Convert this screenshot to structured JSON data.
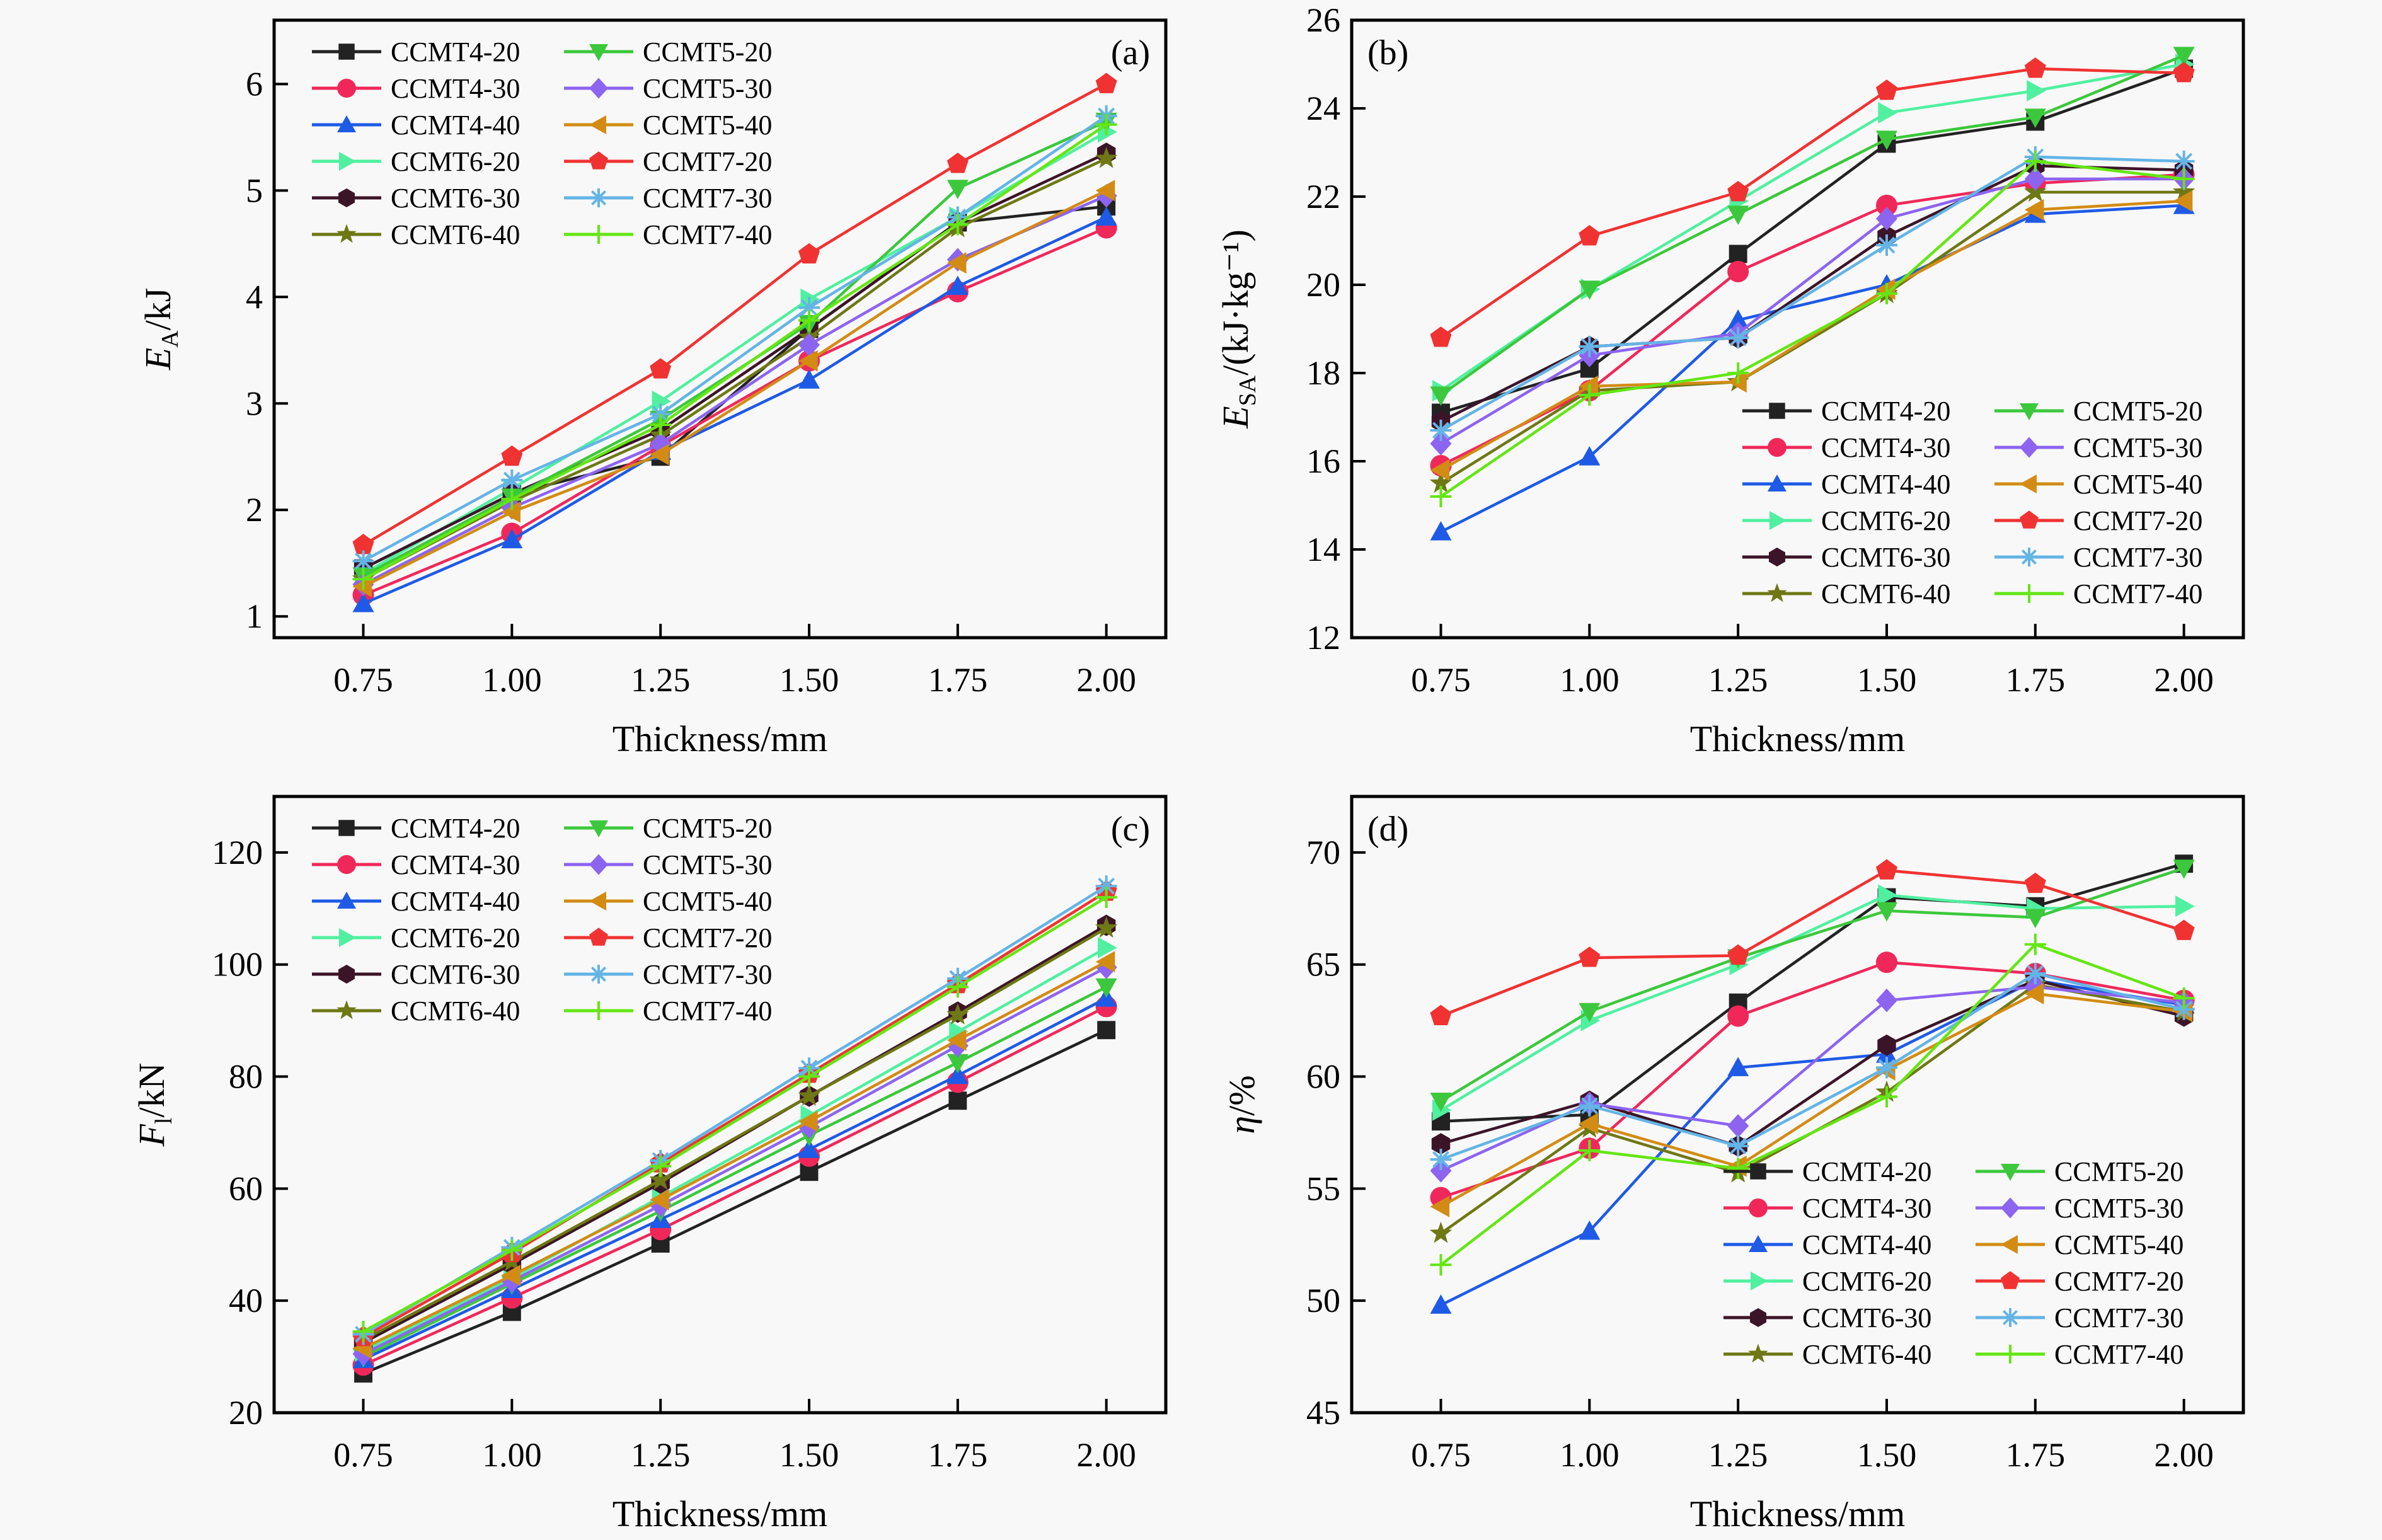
{
  "series_styles": [
    {
      "name": "CCMT4-20",
      "color": "#222222",
      "marker": "square"
    },
    {
      "name": "CCMT4-30",
      "color": "#f0285a",
      "marker": "circle"
    },
    {
      "name": "CCMT4-40",
      "color": "#1e5ae6",
      "marker": "triangle-up"
    },
    {
      "name": "CCMT6-20",
      "color": "#50f0a0",
      "marker": "triangle-right"
    },
    {
      "name": "CCMT6-30",
      "color": "#3c1428",
      "marker": "hexagon"
    },
    {
      "name": "CCMT6-40",
      "color": "#6e7814",
      "marker": "star"
    },
    {
      "name": "CCMT5-20",
      "color": "#3cc83c",
      "marker": "triangle-down"
    },
    {
      "name": "CCMT5-30",
      "color": "#8c64f0",
      "marker": "diamond"
    },
    {
      "name": "CCMT5-40",
      "color": "#d28c14",
      "marker": "triangle-left"
    },
    {
      "name": "CCMT7-20",
      "color": "#f03232",
      "marker": "pentagon"
    },
    {
      "name": "CCMT7-30",
      "color": "#64b4e6",
      "marker": "asterisk"
    },
    {
      "name": "CCMT7-40",
      "color": "#64e614",
      "marker": "plus"
    }
  ],
  "chart_data": [
    {
      "id": "a",
      "type": "line",
      "panel_label": "(a)",
      "title": "",
      "xlabel": "Thickness/mm",
      "ylabel_main": "E",
      "ylabel_sub": "A",
      "ylabel_suffix": "/kJ",
      "x": [
        0.75,
        1.0,
        1.25,
        1.5,
        1.75,
        2.0
      ],
      "x_tick_labels": [
        "0.75",
        "1.00",
        "1.25",
        "1.50",
        "1.75",
        "2.00"
      ],
      "xlim": [
        0.6,
        2.1
      ],
      "ylim": [
        0.8,
        6.6
      ],
      "y_ticks": [
        1,
        2,
        3,
        4,
        5,
        6
      ],
      "y_tick_labels": [
        "1",
        "2",
        "3",
        "4",
        "5",
        "6"
      ],
      "legend_position": "top-left",
      "legend_columns": 2,
      "grid": false,
      "series": [
        {
          "name": "CCMT4-20",
          "values": [
            1.45,
            2.15,
            2.5,
            3.7,
            4.7,
            4.85
          ]
        },
        {
          "name": "CCMT4-30",
          "values": [
            1.2,
            1.78,
            2.6,
            3.4,
            4.05,
            4.65
          ]
        },
        {
          "name": "CCMT4-40",
          "values": [
            1.12,
            1.72,
            2.55,
            3.22,
            4.1,
            4.75
          ]
        },
        {
          "name": "CCMT6-20",
          "values": [
            1.4,
            2.2,
            3.02,
            3.98,
            4.75,
            5.55
          ]
        },
        {
          "name": "CCMT6-30",
          "values": [
            1.45,
            2.15,
            2.75,
            3.7,
            4.7,
            5.35
          ]
        },
        {
          "name": "CCMT6-40",
          "values": [
            1.35,
            2.08,
            2.7,
            3.62,
            4.65,
            5.3
          ]
        },
        {
          "name": "CCMT5-20",
          "values": [
            1.38,
            2.12,
            2.85,
            3.75,
            5.02,
            5.65
          ]
        },
        {
          "name": "CCMT5-30",
          "values": [
            1.3,
            2.02,
            2.62,
            3.55,
            4.35,
            4.95
          ]
        },
        {
          "name": "CCMT5-40",
          "values": [
            1.28,
            1.98,
            2.52,
            3.4,
            4.32,
            5.0
          ]
        },
        {
          "name": "CCMT7-20",
          "values": [
            1.67,
            2.5,
            3.32,
            4.4,
            5.25,
            6.0
          ]
        },
        {
          "name": "CCMT7-30",
          "values": [
            1.52,
            2.28,
            2.9,
            3.9,
            4.75,
            5.7
          ]
        },
        {
          "name": "CCMT7-40",
          "values": [
            1.35,
            2.1,
            2.8,
            3.78,
            4.68,
            5.62
          ]
        }
      ]
    },
    {
      "id": "b",
      "type": "line",
      "panel_label": "(b)",
      "title": "",
      "xlabel": "Thickness/mm",
      "ylabel_main": "E",
      "ylabel_sub": "SA",
      "ylabel_suffix": "/(kJ·kg⁻¹)",
      "x": [
        0.75,
        1.0,
        1.25,
        1.5,
        1.75,
        2.0
      ],
      "x_tick_labels": [
        "0.75",
        "1.00",
        "1.25",
        "1.50",
        "1.75",
        "2.00"
      ],
      "xlim": [
        0.6,
        2.1
      ],
      "ylim": [
        12,
        26
      ],
      "y_ticks": [
        12,
        14,
        16,
        18,
        20,
        22,
        24,
        26
      ],
      "y_tick_labels": [
        "12",
        "14",
        "16",
        "18",
        "20",
        "22",
        "24",
        "26"
      ],
      "legend_position": "bottom-right",
      "legend_columns": 2,
      "grid": false,
      "series": [
        {
          "name": "CCMT4-20",
          "values": [
            17.1,
            18.1,
            20.7,
            23.2,
            23.7,
            24.9
          ]
        },
        {
          "name": "CCMT4-30",
          "values": [
            15.9,
            17.6,
            20.3,
            21.8,
            22.3,
            22.5
          ]
        },
        {
          "name": "CCMT4-40",
          "values": [
            14.4,
            16.1,
            19.2,
            20.0,
            21.6,
            21.8
          ]
        },
        {
          "name": "CCMT6-20",
          "values": [
            17.6,
            19.9,
            21.9,
            23.9,
            24.4,
            25.0
          ]
        },
        {
          "name": "CCMT6-30",
          "values": [
            16.9,
            18.6,
            18.8,
            21.1,
            22.7,
            22.6
          ]
        },
        {
          "name": "CCMT6-40",
          "values": [
            15.5,
            17.6,
            17.8,
            19.8,
            22.1,
            22.1
          ]
        },
        {
          "name": "CCMT5-20",
          "values": [
            17.5,
            19.9,
            21.6,
            23.3,
            23.8,
            25.2
          ]
        },
        {
          "name": "CCMT5-30",
          "values": [
            16.4,
            18.4,
            18.9,
            21.5,
            22.4,
            22.4
          ]
        },
        {
          "name": "CCMT5-40",
          "values": [
            15.8,
            17.7,
            17.8,
            19.9,
            21.7,
            21.9
          ]
        },
        {
          "name": "CCMT7-20",
          "values": [
            18.8,
            21.1,
            22.1,
            24.4,
            24.9,
            24.8
          ]
        },
        {
          "name": "CCMT7-30",
          "values": [
            16.7,
            18.6,
            18.8,
            20.9,
            22.9,
            22.8
          ]
        },
        {
          "name": "CCMT7-40",
          "values": [
            15.2,
            17.5,
            18.0,
            19.8,
            22.8,
            22.4
          ]
        }
      ]
    },
    {
      "id": "c",
      "type": "line",
      "panel_label": "(c)",
      "title": "",
      "xlabel": "Thickness/mm",
      "ylabel_main": "F",
      "ylabel_sub": "l",
      "ylabel_suffix": "/kN",
      "x": [
        0.75,
        1.0,
        1.25,
        1.5,
        1.75,
        2.0
      ],
      "x_tick_labels": [
        "0.75",
        "1.00",
        "1.25",
        "1.50",
        "1.75",
        "2.00"
      ],
      "xlim": [
        0.6,
        2.1
      ],
      "ylim": [
        20,
        130
      ],
      "y_ticks": [
        20,
        40,
        60,
        80,
        100,
        120
      ],
      "y_tick_labels": [
        "20",
        "40",
        "60",
        "80",
        "100",
        "120"
      ],
      "legend_position": "top-left",
      "legend_columns": 2,
      "grid": false,
      "series": [
        {
          "name": "CCMT4-20",
          "values": [
            27.0,
            38.0,
            50.2,
            63.0,
            75.7,
            88.3
          ]
        },
        {
          "name": "CCMT4-30",
          "values": [
            28.5,
            40.5,
            52.7,
            65.8,
            79.0,
            92.5
          ]
        },
        {
          "name": "CCMT4-40",
          "values": [
            29.5,
            42.0,
            54.5,
            67.0,
            80.2,
            94.0
          ]
        },
        {
          "name": "CCMT6-20",
          "values": [
            31.0,
            44.0,
            58.5,
            73.0,
            88.0,
            103.0
          ]
        },
        {
          "name": "CCMT6-30",
          "values": [
            32.5,
            46.5,
            61.0,
            76.5,
            91.5,
            107.0
          ]
        },
        {
          "name": "CCMT6-40",
          "values": [
            33.0,
            47.0,
            61.5,
            76.5,
            91.0,
            106.5
          ]
        },
        {
          "name": "CCMT5-20",
          "values": [
            30.0,
            43.0,
            56.0,
            69.5,
            82.5,
            96.0
          ]
        },
        {
          "name": "CCMT5-30",
          "values": [
            30.5,
            43.5,
            57.0,
            71.0,
            85.5,
            99.5
          ]
        },
        {
          "name": "CCMT5-40",
          "values": [
            31.5,
            44.5,
            58.0,
            72.0,
            86.5,
            100.5
          ]
        },
        {
          "name": "CCMT7-20",
          "values": [
            33.5,
            48.5,
            64.5,
            80.5,
            96.5,
            113.0
          ]
        },
        {
          "name": "CCMT7-30",
          "values": [
            34.0,
            49.5,
            65.0,
            81.5,
            97.5,
            114.0
          ]
        },
        {
          "name": "CCMT7-40",
          "values": [
            34.5,
            49.0,
            64.0,
            80.0,
            96.0,
            112.0
          ]
        }
      ]
    },
    {
      "id": "d",
      "type": "line",
      "panel_label": "(d)",
      "title": "",
      "xlabel": "Thickness/mm",
      "ylabel_main": "η",
      "ylabel_sub": "",
      "ylabel_suffix": "/%",
      "x": [
        0.75,
        1.0,
        1.25,
        1.5,
        1.75,
        2.0
      ],
      "x_tick_labels": [
        "0.75",
        "1.00",
        "1.25",
        "1.50",
        "1.75",
        "2.00"
      ],
      "xlim": [
        0.6,
        2.1
      ],
      "ylim": [
        45,
        72.5
      ],
      "y_ticks": [
        45,
        50,
        55,
        60,
        65,
        70
      ],
      "y_tick_labels": [
        "45",
        "50",
        "55",
        "60",
        "65",
        "70"
      ],
      "legend_position": "bottom-right",
      "legend_columns": 2,
      "grid": false,
      "series": [
        {
          "name": "CCMT4-20",
          "values": [
            58.0,
            58.3,
            63.3,
            68.0,
            67.6,
            69.5
          ]
        },
        {
          "name": "CCMT4-30",
          "values": [
            54.6,
            56.8,
            62.7,
            65.1,
            64.6,
            63.4
          ]
        },
        {
          "name": "CCMT4-40",
          "values": [
            49.8,
            53.1,
            60.4,
            61.0,
            64.3,
            63.2
          ]
        },
        {
          "name": "CCMT6-20",
          "values": [
            58.5,
            62.5,
            65.0,
            68.1,
            67.5,
            67.6
          ]
        },
        {
          "name": "CCMT6-30",
          "values": [
            57.0,
            58.9,
            56.9,
            61.4,
            64.3,
            62.7
          ]
        },
        {
          "name": "CCMT6-40",
          "values": [
            53.0,
            57.7,
            55.7,
            59.3,
            64.1,
            62.9
          ]
        },
        {
          "name": "CCMT5-20",
          "values": [
            58.9,
            62.9,
            65.3,
            67.4,
            67.1,
            69.3
          ]
        },
        {
          "name": "CCMT5-30",
          "values": [
            55.8,
            58.8,
            57.8,
            63.4,
            64.0,
            63.3
          ]
        },
        {
          "name": "CCMT5-40",
          "values": [
            54.2,
            57.9,
            56.0,
            60.3,
            63.7,
            62.9
          ]
        },
        {
          "name": "CCMT7-20",
          "values": [
            62.7,
            65.3,
            65.4,
            69.2,
            68.6,
            66.5
          ]
        },
        {
          "name": "CCMT7-30",
          "values": [
            56.3,
            58.7,
            56.9,
            60.4,
            64.6,
            63.0
          ]
        },
        {
          "name": "CCMT7-40",
          "values": [
            51.6,
            56.7,
            55.9,
            59.1,
            65.9,
            63.5
          ]
        }
      ]
    }
  ]
}
